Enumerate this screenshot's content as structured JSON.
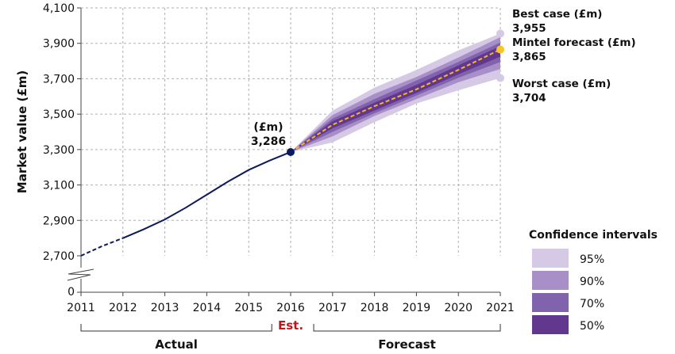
{
  "chart_data": {
    "type": "line",
    "ylabel": "Market value (£m)",
    "ylim": [
      2700,
      4100
    ],
    "y_ticks": [
      2700,
      2900,
      3100,
      3300,
      3500,
      3700,
      3900,
      4100
    ],
    "y_tick_labels": [
      "2,700",
      "2,900",
      "3,100",
      "3,300",
      "3,500",
      "3,700",
      "3,900",
      "4,100"
    ],
    "y_zero_label": "0",
    "y_axis_break": true,
    "x_ticks": [
      2011,
      2012,
      2013,
      2014,
      2015,
      2016,
      2017,
      2018,
      2019,
      2020,
      2021
    ],
    "x_tick_labels": [
      "2011",
      "2012",
      "2013",
      "2014",
      "2015",
      "2016",
      "2017",
      "2018",
      "2019",
      "2020",
      "2021"
    ],
    "grid": true,
    "actual": {
      "x": [
        2011,
        2011.2,
        2011.5,
        2012,
        2012.5,
        2013,
        2013.5,
        2014,
        2014.5,
        2015,
        2015.5,
        2016
      ],
      "y": [
        2700,
        2722,
        2754,
        2800,
        2850,
        2905,
        2972,
        3045,
        3118,
        3185,
        3238,
        3286
      ],
      "dashed_until": 2012
    },
    "estimate": {
      "x": 2016,
      "y": 3286,
      "label_top": "(£m)",
      "label_value": "3,286"
    },
    "forecast": {
      "x": [
        2016,
        2017,
        2018,
        2019,
        2020,
        2021
      ],
      "y": [
        3286,
        3440,
        3545,
        3640,
        3750,
        3865
      ]
    },
    "confidence_bands": [
      {
        "name": "95%",
        "color": "#d6c9e5",
        "lower": [
          3286,
          3340,
          3455,
          3560,
          3635,
          3704
        ],
        "upper": [
          3286,
          3520,
          3650,
          3750,
          3860,
          3955
        ]
      },
      {
        "name": "90%",
        "color": "#a98fc8",
        "lower": [
          3286,
          3375,
          3490,
          3585,
          3680,
          3755
        ],
        "upper": [
          3286,
          3495,
          3615,
          3710,
          3820,
          3935
        ]
      },
      {
        "name": "70%",
        "color": "#8062ad",
        "lower": [
          3286,
          3400,
          3505,
          3605,
          3705,
          3795
        ],
        "upper": [
          3286,
          3475,
          3585,
          3690,
          3795,
          3905
        ]
      },
      {
        "name": "50%",
        "color": "#62388f",
        "lower": [
          3286,
          3420,
          3520,
          3620,
          3725,
          3825
        ],
        "upper": [
          3286,
          3460,
          3565,
          3665,
          3775,
          3885
        ]
      }
    ],
    "endpoint_labels": [
      {
        "title": "Best case (£m)",
        "value": "3,955",
        "y": 3955
      },
      {
        "title": "Mintel forecast (£m)",
        "value": "3,865",
        "y": 3865
      },
      {
        "title": "Worst case (£m)",
        "value": "3,704",
        "y": 3704
      }
    ],
    "period_labels": {
      "actual": "Actual",
      "est": "Est.",
      "forecast": "Forecast"
    },
    "legend": {
      "title": "Confidence intervals",
      "placement": "bottom-right",
      "items": [
        "95%",
        "90%",
        "70%",
        "50%"
      ]
    },
    "colors": {
      "actual_line": "#0b1a5c",
      "forecast_line": "#f7b52a",
      "forecast_marker": "#f7c52a",
      "est_label": "#c0171c",
      "grid": "#b0b0b0"
    }
  }
}
